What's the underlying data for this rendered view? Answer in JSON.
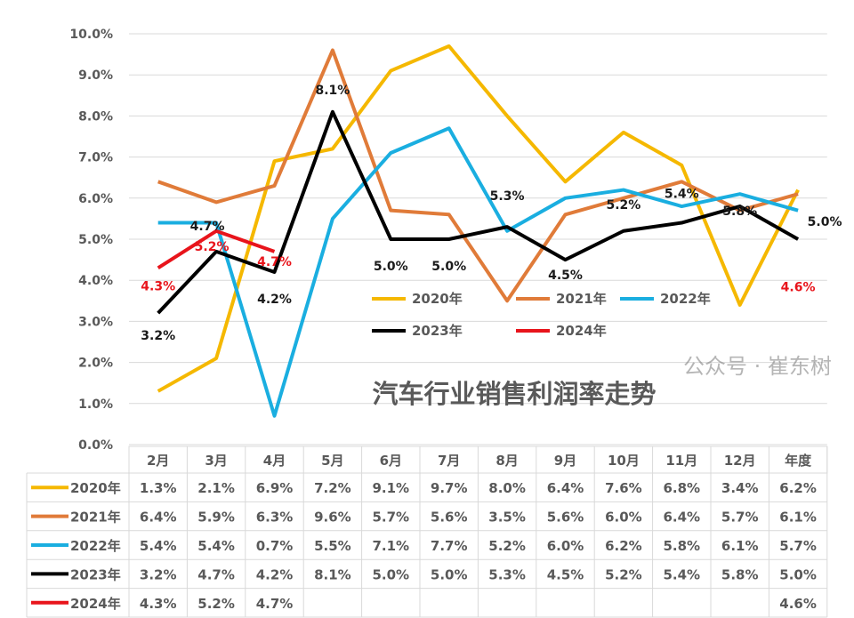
{
  "chart_data": {
    "type": "line",
    "title": "汽车行业销售利润率走势",
    "categories": [
      "2月",
      "3月",
      "4月",
      "5月",
      "6月",
      "7月",
      "8月",
      "9月",
      "10月",
      "11月",
      "12月",
      "年度"
    ],
    "ylim": [
      0,
      10
    ],
    "yticks": [
      "0.0%",
      "1.0%",
      "2.0%",
      "3.0%",
      "4.0%",
      "5.0%",
      "6.0%",
      "7.0%",
      "8.0%",
      "9.0%",
      "10.0%"
    ],
    "grid": true,
    "legend_placement": "center-right inside plot",
    "series": [
      {
        "name": "2020年",
        "color": "#F5B800",
        "values": [
          1.3,
          2.1,
          6.9,
          7.2,
          9.1,
          9.7,
          8.0,
          6.4,
          7.6,
          6.8,
          3.4,
          6.2
        ],
        "table": [
          "1.3%",
          "2.1%",
          "6.9%",
          "7.2%",
          "9.1%",
          "9.7%",
          "8.0%",
          "6.4%",
          "7.6%",
          "6.8%",
          "3.4%",
          "6.2%"
        ]
      },
      {
        "name": "2021年",
        "color": "#E07B39",
        "values": [
          6.4,
          5.9,
          6.3,
          9.6,
          5.7,
          5.6,
          3.5,
          5.6,
          6.0,
          6.4,
          5.7,
          6.1
        ],
        "table": [
          "6.4%",
          "5.9%",
          "6.3%",
          "9.6%",
          "5.7%",
          "5.6%",
          "3.5%",
          "5.6%",
          "6.0%",
          "6.4%",
          "5.7%",
          "6.1%"
        ]
      },
      {
        "name": "2022年",
        "color": "#1AAEE0",
        "values": [
          5.4,
          5.4,
          0.7,
          5.5,
          7.1,
          7.7,
          5.2,
          6.0,
          6.2,
          5.8,
          6.1,
          5.7
        ],
        "table": [
          "5.4%",
          "5.4%",
          "0.7%",
          "5.5%",
          "7.1%",
          "7.7%",
          "5.2%",
          "6.0%",
          "6.2%",
          "5.8%",
          "6.1%",
          "5.7%"
        ]
      },
      {
        "name": "2023年",
        "color": "#000000",
        "values": [
          3.2,
          4.7,
          4.2,
          8.1,
          5.0,
          5.0,
          5.3,
          4.5,
          5.2,
          5.4,
          5.8,
          5.0
        ],
        "table": [
          "3.2%",
          "4.7%",
          "4.2%",
          "8.1%",
          "5.0%",
          "5.0%",
          "5.3%",
          "4.5%",
          "5.2%",
          "5.4%",
          "5.8%",
          "5.0%"
        ]
      },
      {
        "name": "2024年",
        "color": "#E8141B",
        "values": [
          4.3,
          5.2,
          4.7,
          null,
          null,
          null,
          null,
          null,
          null,
          null,
          null,
          4.6
        ],
        "table": [
          "4.3%",
          "5.2%",
          "4.7%",
          "",
          "",
          "",
          "",
          "",
          "",
          "",
          "",
          "4.6%"
        ]
      }
    ],
    "data_labels": {
      "2023年": [
        "3.2%",
        "4.7%",
        "4.2%",
        "8.1%",
        "5.0%",
        "5.0%",
        "5.3%",
        "4.5%",
        "5.2%",
        "5.4%",
        "5.8%",
        "5.0%"
      ],
      "2024年": [
        "4.3%",
        "5.2%",
        "4.7%",
        "",
        "",
        "",
        "",
        "",
        "",
        "",
        "",
        "4.6%"
      ]
    }
  },
  "watermark": "公众号 · 崔东树"
}
